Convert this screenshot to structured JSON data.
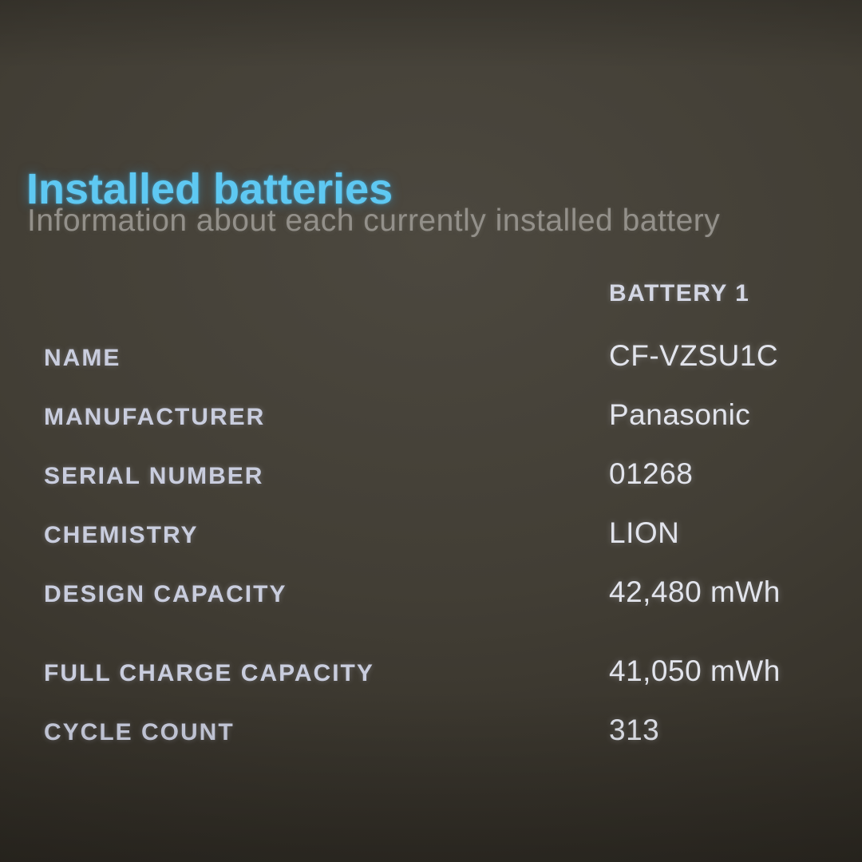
{
  "page": {
    "title": "Installed batteries",
    "subtitle": "Information about each currently installed battery"
  },
  "battery_table": {
    "column_header": "BATTERY 1",
    "rows": [
      {
        "label": "NAME",
        "value": "CF-VZSU1C"
      },
      {
        "label": "MANUFACTURER",
        "value": "Panasonic"
      },
      {
        "label": "SERIAL NUMBER",
        "value": "01268"
      },
      {
        "label": "CHEMISTRY",
        "value": "LION"
      },
      {
        "label": "DESIGN CAPACITY",
        "value": "42,480 mWh"
      },
      {
        "label": "FULL CHARGE CAPACITY",
        "value": "41,050 mWh"
      },
      {
        "label": "CYCLE COUNT",
        "value": "313"
      }
    ]
  },
  "colors": {
    "background": "#423e35",
    "title_accent": "#5ec8f2",
    "subtitle": "#93908a",
    "label": "#c9cdde",
    "value": "#e2e4ec"
  }
}
